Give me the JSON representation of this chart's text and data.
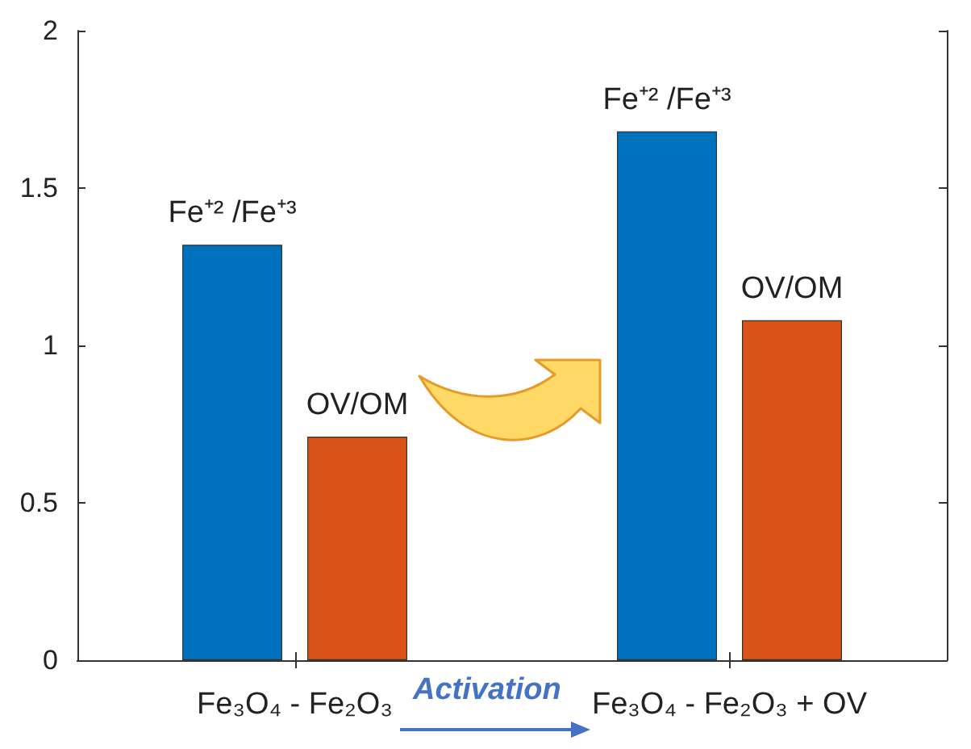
{
  "chart_data": {
    "type": "bar",
    "categories": [
      "Fe₃O₄ - Fe₂O₃",
      "Fe₃O₄ - Fe₂O₃ + OV"
    ],
    "series": [
      {
        "name": "Fe⁺² /Fe⁺³",
        "color": "#0072bd",
        "values": [
          1.32,
          1.68
        ]
      },
      {
        "name": "OV/OM",
        "color": "#d95319",
        "values": [
          0.71,
          1.08
        ]
      }
    ],
    "ylim": [
      0,
      2
    ],
    "yticks": [
      0,
      0.5,
      1,
      1.5,
      2
    ],
    "grid": false,
    "legend": false,
    "annotations": [
      "Activation"
    ]
  }
}
